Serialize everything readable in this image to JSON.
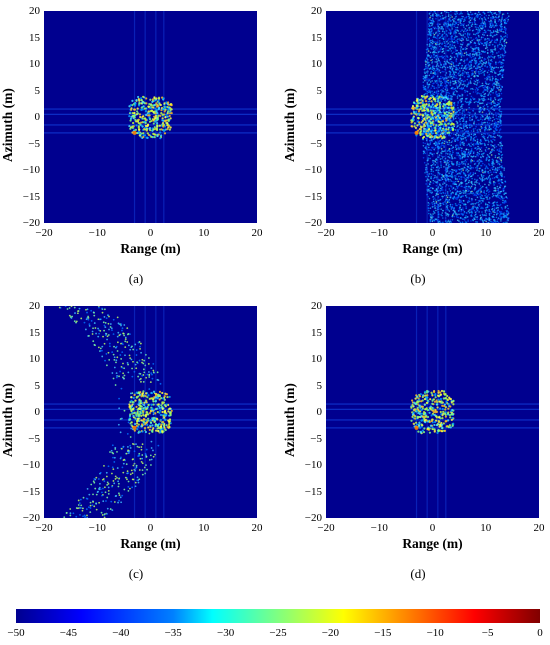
{
  "chart_data": [
    {
      "type": "heatmap",
      "panel": "(a)",
      "xlabel": "Range (m)",
      "ylabel": "Azimuth (m)",
      "xlim": [
        -20,
        20
      ],
      "ylim": [
        -20,
        20
      ],
      "x_ticks": [
        "−20",
        "−10",
        "0",
        "10",
        "20"
      ],
      "y_ticks": [
        "20",
        "15",
        "10",
        "5",
        "0",
        "−5",
        "−10",
        "−15",
        "−20"
      ],
      "pattern": "target-only"
    },
    {
      "type": "heatmap",
      "panel": "(b)",
      "xlabel": "Range (m)",
      "ylabel": "Azimuth (m)",
      "xlim": [
        -20,
        20
      ],
      "ylim": [
        -20,
        20
      ],
      "x_ticks": [
        "−20",
        "−10",
        "0",
        "10",
        "20"
      ],
      "y_ticks": [
        "20",
        "15",
        "10",
        "5",
        "0",
        "−5",
        "−10",
        "−15",
        "−20"
      ],
      "pattern": "target-with-dense-arc-clutter"
    },
    {
      "type": "heatmap",
      "panel": "(c)",
      "xlabel": "Range (m)",
      "ylabel": "Azimuth (m)",
      "xlim": [
        -20,
        20
      ],
      "ylim": [
        -20,
        20
      ],
      "x_ticks": [
        "−20",
        "−10",
        "0",
        "10",
        "20"
      ],
      "y_ticks": [
        "20",
        "15",
        "10",
        "5",
        "0",
        "−5",
        "−10",
        "−15",
        "−20"
      ],
      "pattern": "target-with-sparse-arc-clutter"
    },
    {
      "type": "heatmap",
      "panel": "(d)",
      "xlabel": "Range (m)",
      "ylabel": "Azimuth (m)",
      "xlim": [
        -20,
        20
      ],
      "ylim": [
        -20,
        20
      ],
      "x_ticks": [
        "−20",
        "−10",
        "0",
        "10",
        "20"
      ],
      "y_ticks": [
        "20",
        "15",
        "10",
        "5",
        "0",
        "−5",
        "−10",
        "−15",
        "−20"
      ],
      "pattern": "target-only"
    }
  ],
  "colorbar": {
    "range": [
      -50,
      0
    ],
    "ticks": [
      "−50",
      "−45",
      "−40",
      "−35",
      "−30",
      "−25",
      "−20",
      "−15",
      "−10",
      "−5",
      "0"
    ]
  },
  "captions": [
    "(a)",
    "(b)",
    "(c)",
    "(d)"
  ]
}
